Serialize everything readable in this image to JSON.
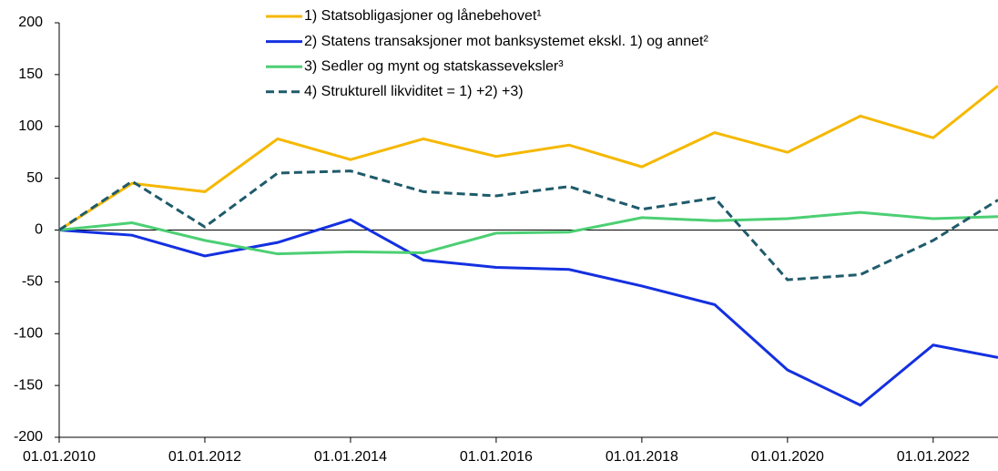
{
  "chart_data": {
    "type": "line",
    "x": [
      2010,
      2011,
      2012,
      2013,
      2014,
      2015,
      2016,
      2017,
      2018,
      2019,
      2020,
      2021,
      2022,
      2022.89
    ],
    "xlim": [
      2010,
      2022.89
    ],
    "xticks": [
      {
        "value": 2010,
        "label": "01.01.2010"
      },
      {
        "value": 2012,
        "label": "01.01.2012"
      },
      {
        "value": 2014,
        "label": "01.01.2014"
      },
      {
        "value": 2016,
        "label": "01.01.2016"
      },
      {
        "value": 2018,
        "label": "01.01.2018"
      },
      {
        "value": 2020,
        "label": "01.01.2020"
      },
      {
        "value": 2022,
        "label": "01.01.2022"
      }
    ],
    "ylim": [
      -200,
      200
    ],
    "yticks": [
      200,
      150,
      100,
      50,
      0,
      -50,
      -100,
      -150,
      -200
    ],
    "legend": "top",
    "series": [
      {
        "name": "1) Statsobligasjoner og lånebehovet¹",
        "color": "#f5b800",
        "style": "solid",
        "values": [
          0,
          45,
          37,
          88,
          68,
          88,
          71,
          82,
          61,
          94,
          75,
          110,
          89,
          139
        ]
      },
      {
        "name": "2) Statens transaksjoner mot banksystemet ekskl. 1) og annet²",
        "color": "#1430e0",
        "style": "solid",
        "values": [
          0,
          -5,
          -25,
          -12,
          10,
          -29,
          -36,
          -38,
          -54,
          -72,
          -135,
          -169,
          -111,
          -123
        ]
      },
      {
        "name": "3) Sedler og mynt og statskasseveksler³",
        "color": "#4ccf73",
        "style": "solid",
        "values": [
          0,
          7,
          -10,
          -23,
          -21,
          -22,
          -3,
          -2,
          12,
          9,
          11,
          17,
          11,
          13
        ]
      },
      {
        "name": "4) Strukturell likviditet = 1) +2) +3)",
        "color": "#1f5b6b",
        "style": "dashed",
        "values": [
          0,
          47,
          3,
          55,
          57,
          37,
          33,
          42,
          20,
          31,
          -48,
          -43,
          -10,
          29
        ]
      }
    ]
  }
}
